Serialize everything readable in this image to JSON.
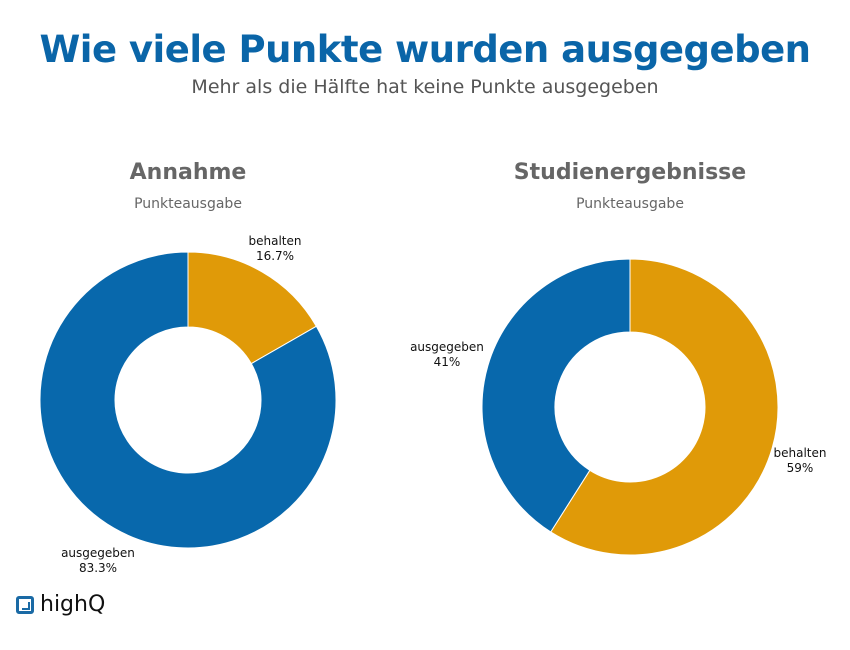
{
  "title": "Wie viele Punkte wurden ausgegeben",
  "subtitle": "Mehr als die Hälfte hat keine Punkte ausgegeben",
  "logo_text": "highQ",
  "colors": {
    "ausgegeben": "#0868ac",
    "behalten": "#e09a08",
    "title": "#0a65a8"
  },
  "chart_data": [
    {
      "type": "pie",
      "donut": true,
      "title": "Annahme",
      "subtitle": "Punkteausgabe",
      "slices": [
        {
          "label": "behalten",
          "value": 16.7,
          "display": "16.7%"
        },
        {
          "label": "ausgegeben",
          "value": 83.3,
          "display": "83.3%"
        }
      ]
    },
    {
      "type": "pie",
      "donut": true,
      "title": "Studienergebnisse",
      "subtitle": "Punkteausgabe",
      "slices": [
        {
          "label": "behalten",
          "value": 59,
          "display": "59%"
        },
        {
          "label": "ausgegeben",
          "value": 41,
          "display": "41%"
        }
      ]
    }
  ]
}
